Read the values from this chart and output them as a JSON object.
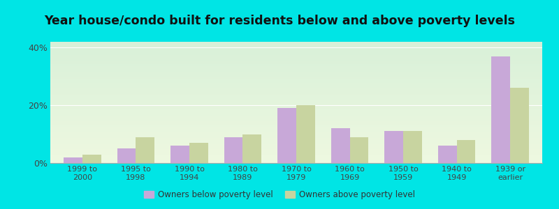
{
  "title": "Year house/condo built for residents below and above poverty levels",
  "categories": [
    "1999 to\n2000",
    "1995 to\n1998",
    "1990 to\n1994",
    "1980 to\n1989",
    "1970 to\n1979",
    "1960 to\n1969",
    "1950 to\n1959",
    "1940 to\n1949",
    "1939 or\nearlier"
  ],
  "below_poverty": [
    2.0,
    5.0,
    6.0,
    9.0,
    19.0,
    12.0,
    11.0,
    6.0,
    37.0
  ],
  "above_poverty": [
    3.0,
    9.0,
    7.0,
    10.0,
    20.0,
    9.0,
    11.0,
    8.0,
    26.0
  ],
  "below_color": "#c8a8d8",
  "above_color": "#c8d4a0",
  "bg_top_color": "#d8f0d8",
  "bg_bottom_color": "#eef8e0",
  "outer_bg": "#00e5e5",
  "ylim": [
    0,
    42
  ],
  "yticks": [
    0,
    20,
    40
  ],
  "ytick_labels": [
    "0%",
    "20%",
    "40%"
  ],
  "legend_below": "Owners below poverty level",
  "legend_above": "Owners above poverty level",
  "bar_width": 0.35,
  "title_fontsize": 12.5,
  "tick_fontsize": 8,
  "legend_fontsize": 8.5
}
